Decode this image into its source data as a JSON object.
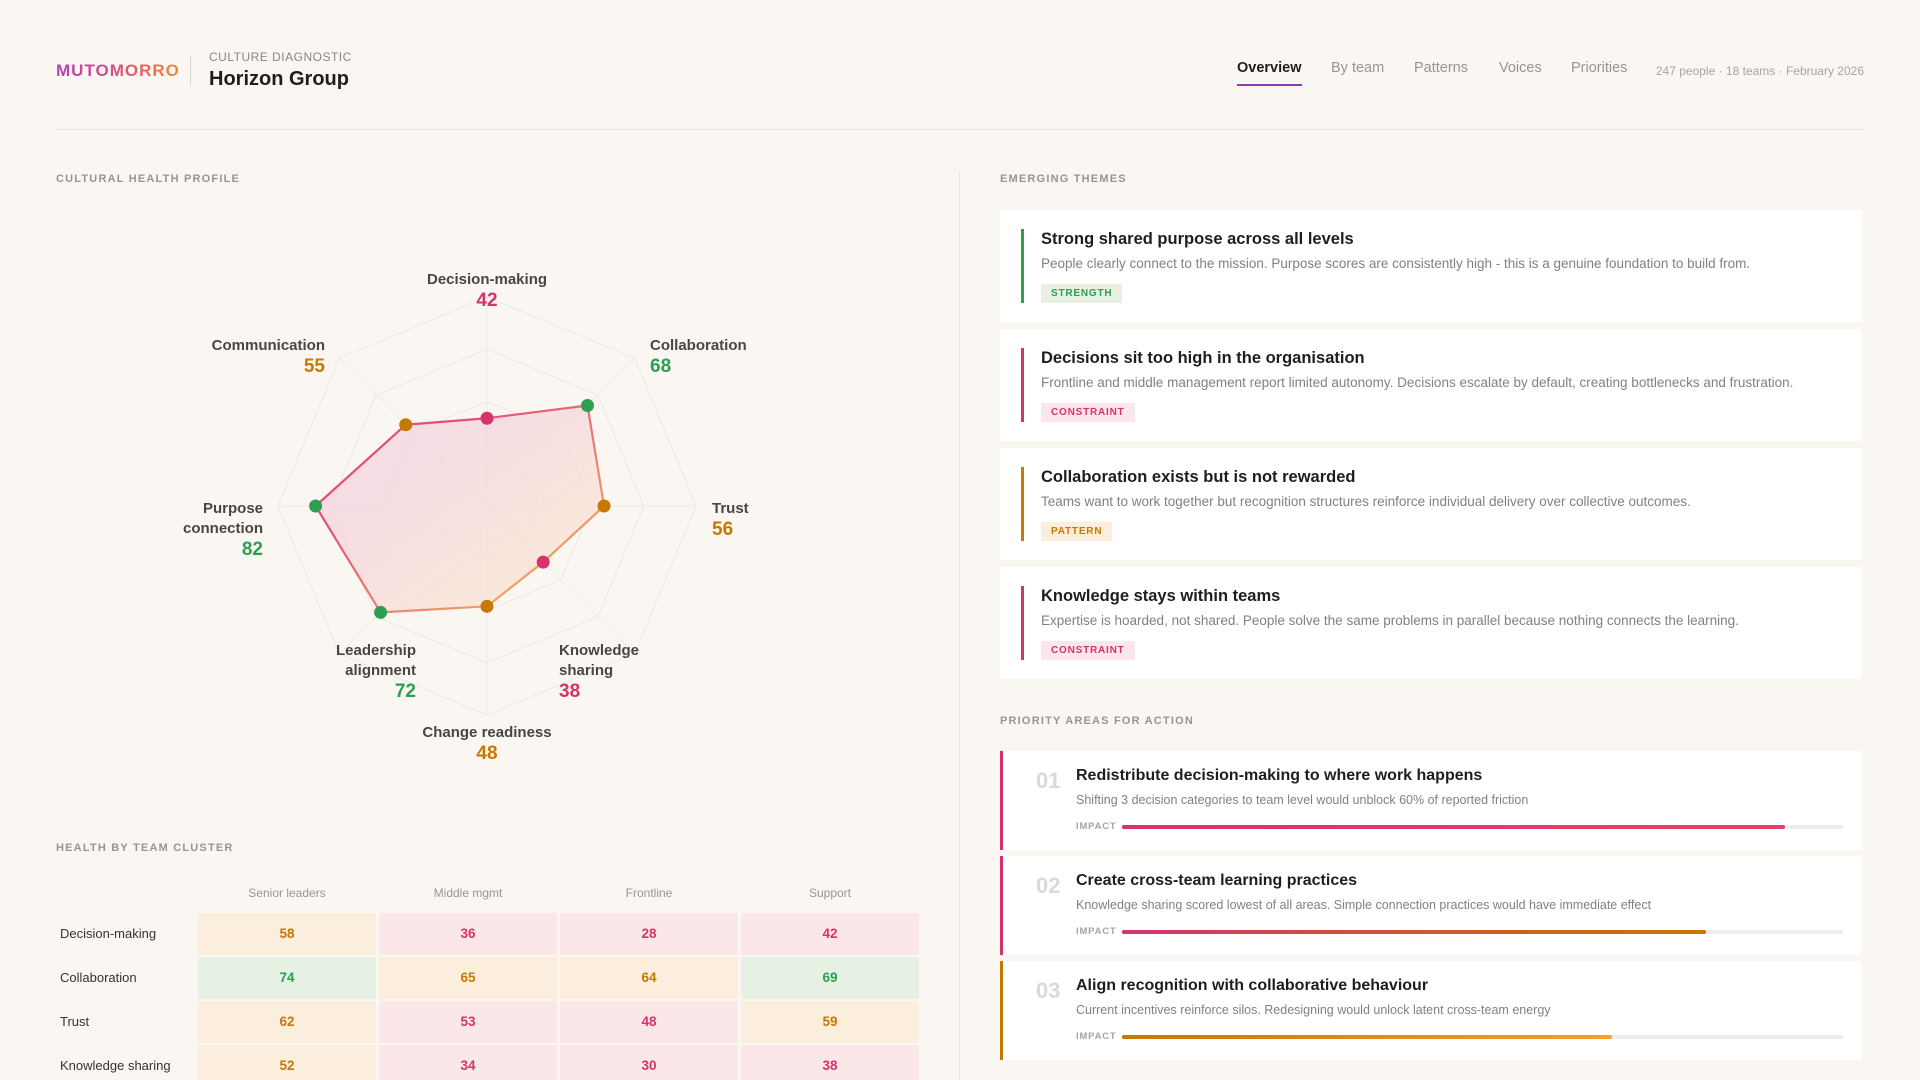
{
  "header": {
    "logo": "MUTOMORRO",
    "eyebrow": "CULTURE DIAGNOSTIC",
    "title": "Horizon Group",
    "nav": [
      "Overview",
      "By team",
      "Patterns",
      "Voices",
      "Priorities"
    ],
    "active_nav": 0,
    "meta": "247 people · 18 teams · February 2026"
  },
  "chart_data": {
    "type": "radar",
    "title": "CULTURAL HEALTH PROFILE",
    "categories": [
      "Decision-making",
      "Collaboration",
      "Trust",
      "Knowledge sharing",
      "Change readiness",
      "Leadership alignment",
      "Purpose connection",
      "Communication"
    ],
    "values": [
      42,
      68,
      56,
      38,
      48,
      72,
      82,
      55
    ],
    "tones": [
      "low",
      "high",
      "mid",
      "low",
      "mid",
      "high",
      "high",
      "mid"
    ],
    "rlim": [
      0,
      100
    ],
    "rticks": [
      25,
      50,
      75,
      100
    ],
    "grid": true,
    "line_colors": [
      "#e0507a",
      "#f2a066"
    ],
    "fill_colors": [
      "#f5d3de",
      "#fbe3d2"
    ]
  },
  "heatmap": {
    "title": "HEALTH BY TEAM CLUSTER",
    "columns": [
      "Senior leaders",
      "Middle mgmt",
      "Frontline",
      "Support"
    ],
    "rows": [
      {
        "label": "Decision-making",
        "values": [
          58,
          36,
          28,
          42
        ],
        "tones": [
          "mid",
          "low",
          "low",
          "low"
        ]
      },
      {
        "label": "Collaboration",
        "values": [
          74,
          65,
          64,
          69
        ],
        "tones": [
          "high",
          "mid",
          "mid",
          "high"
        ]
      },
      {
        "label": "Trust",
        "values": [
          62,
          53,
          48,
          59
        ],
        "tones": [
          "mid",
          "low",
          "low",
          "mid"
        ]
      },
      {
        "label": "Knowledge sharing",
        "values": [
          52,
          34,
          30,
          38
        ],
        "tones": [
          "mid",
          "low",
          "low",
          "low"
        ]
      }
    ]
  },
  "themes": {
    "title": "EMERGING THEMES",
    "items": [
      {
        "title": "Strong shared purpose across all levels",
        "text": "People clearly connect to the mission. Purpose scores are consistently high - this is a genuine foundation to build from.",
        "tag": "STRENGTH",
        "tone": "high"
      },
      {
        "title": "Decisions sit too high in the organisation",
        "text": "Frontline and middle management report limited autonomy. Decisions escalate by default, creating bottlenecks and frustration.",
        "tag": "CONSTRAINT",
        "tone": "low"
      },
      {
        "title": "Collaboration exists but is not rewarded",
        "text": "Teams want to work together but recognition structures reinforce individual delivery over collective outcomes.",
        "tag": "PATTERN",
        "tone": "mid"
      },
      {
        "title": "Knowledge stays within teams",
        "text": "Expertise is hoarded, not shared. People solve the same problems in parallel because nothing connects the learning.",
        "tag": "CONSTRAINT",
        "tone": "low"
      }
    ]
  },
  "priorities": {
    "title": "PRIORITY AREAS FOR ACTION",
    "impact_label": "IMPACT",
    "impact_lim": [
      0,
      100
    ],
    "items": [
      {
        "number": "01",
        "title": "Redistribute decision-making to where work happens",
        "text": "Shifting 3 decision categories to team level would unblock 60% of reported friction",
        "impact": 92,
        "tone": "low",
        "bar_colors": [
          "#d6336c",
          "#e0446a"
        ]
      },
      {
        "number": "02",
        "title": "Create cross-team learning practices",
        "text": "Knowledge sharing scored lowest of all areas. Simple connection practices would have immediate effect",
        "impact": 81,
        "tone": "low",
        "bar_colors": [
          "#d6336c",
          "#c77800"
        ]
      },
      {
        "number": "03",
        "title": "Align recognition with collaborative behaviour",
        "text": "Current incentives reinforce silos. Redesigning would unlock latent cross-team energy",
        "impact": 68,
        "tone": "mid",
        "bar_colors": [
          "#c77800",
          "#f2a22a"
        ]
      }
    ]
  }
}
